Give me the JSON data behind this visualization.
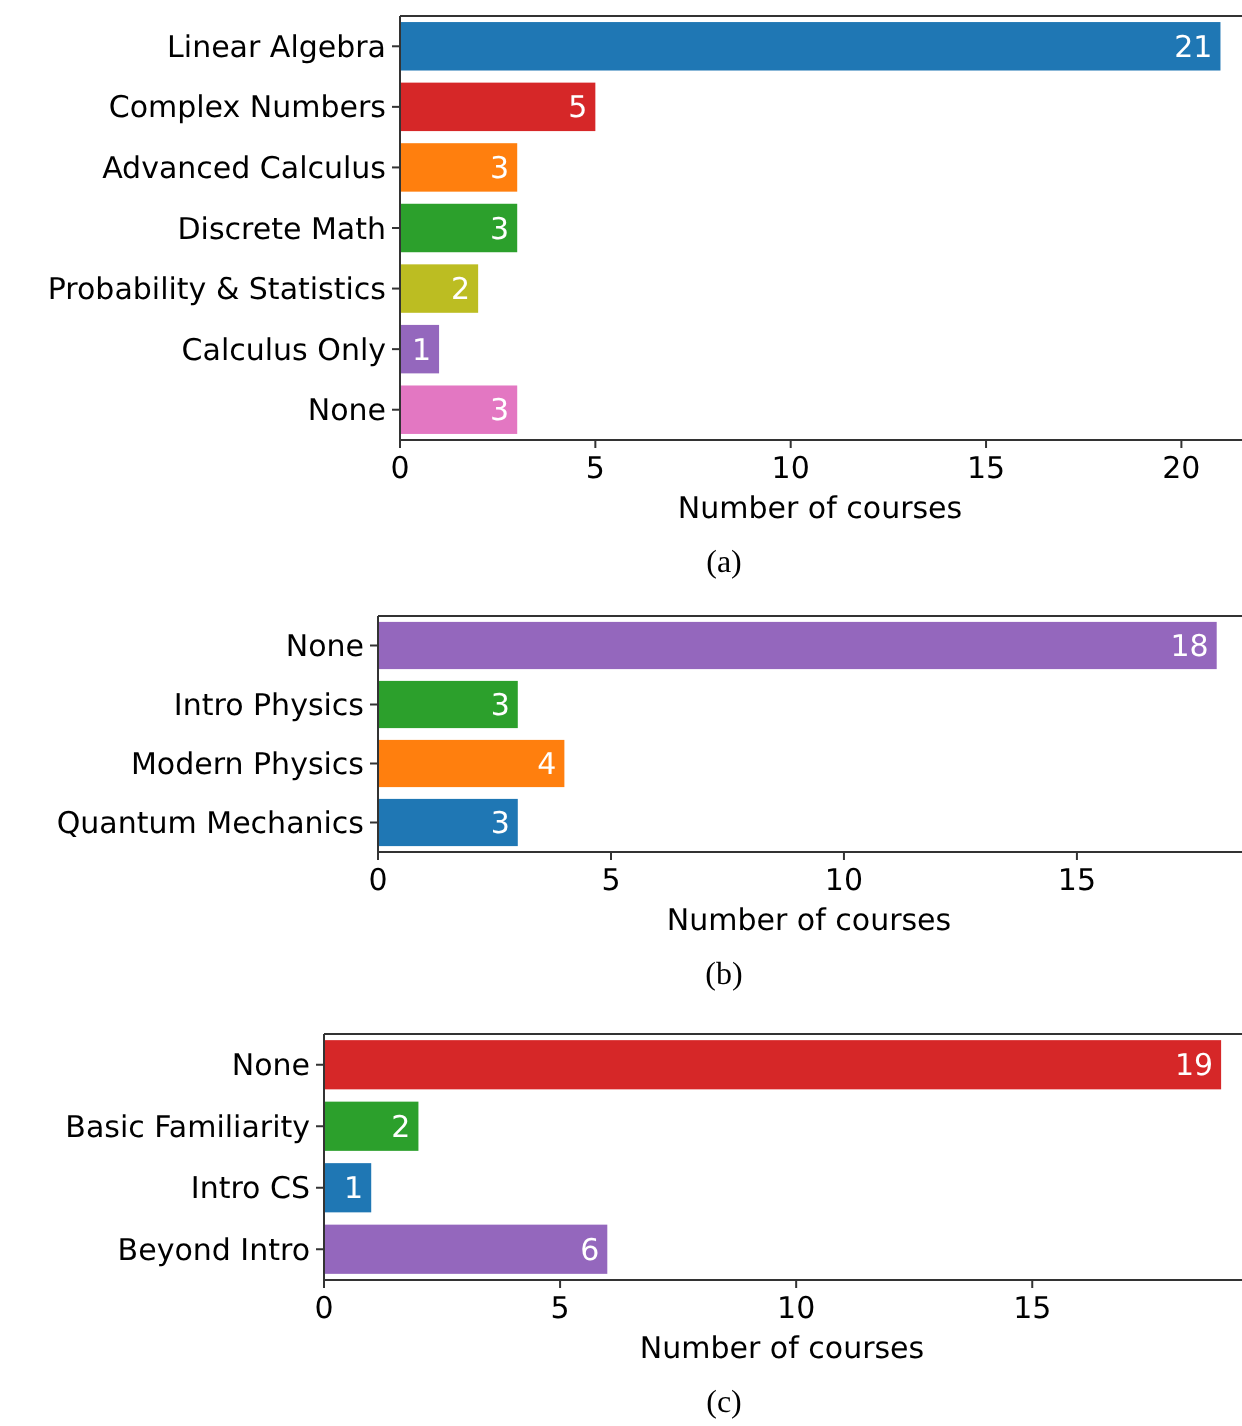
{
  "chart_data": [
    {
      "type": "bar",
      "orientation": "horizontal",
      "categories": [
        "Linear Algebra",
        "Complex Numbers",
        "Advanced Calculus",
        "Discrete Math",
        "Probability & Statistics",
        "Calculus Only",
        "None"
      ],
      "values": [
        21,
        5,
        3,
        3,
        2,
        1,
        3
      ],
      "colors": [
        "#1f77b4",
        "#d62728",
        "#ff7f0e",
        "#2ca02c",
        "#bcbd22",
        "#9467bd",
        "#e377c2"
      ],
      "xlim": [
        0,
        21.5
      ],
      "xticks": [
        0,
        5,
        10,
        15,
        20
      ],
      "xlabel": "Number of courses",
      "data_labels": true,
      "annotations": [
        "(a)"
      ]
    },
    {
      "type": "bar",
      "orientation": "horizontal",
      "categories": [
        "None",
        "Intro Physics",
        "Modern Physics",
        "Quantum Mechanics"
      ],
      "values": [
        18,
        3,
        4,
        3
      ],
      "colors": [
        "#9467bd",
        "#2ca02c",
        "#ff7f0e",
        "#1f77b4"
      ],
      "xlim": [
        0,
        18.5
      ],
      "xticks": [
        0,
        5,
        10,
        15
      ],
      "xlabel": "Number of courses",
      "data_labels": true,
      "annotations": [
        "(b)"
      ]
    },
    {
      "type": "bar",
      "orientation": "horizontal",
      "categories": [
        "None",
        "Basic Familiarity",
        "Intro CS",
        "Beyond Intro"
      ],
      "values": [
        19,
        2,
        1,
        6
      ],
      "colors": [
        "#d62728",
        "#2ca02c",
        "#1f77b4",
        "#9467bd"
      ],
      "xlim": [
        0,
        19.4
      ],
      "xticks": [
        0,
        5,
        10,
        15
      ],
      "xlabel": "Number of courses",
      "data_labels": true,
      "annotations": [
        "(c)"
      ]
    }
  ]
}
